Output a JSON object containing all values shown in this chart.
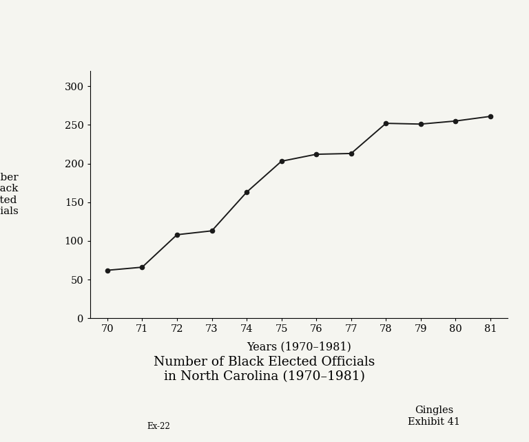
{
  "years": [
    "70",
    "71",
    "72",
    "73",
    "74",
    "75",
    "76",
    "77",
    "78",
    "79",
    "80",
    "81"
  ],
  "values": [
    62,
    66,
    108,
    113,
    163,
    203,
    212,
    213,
    252,
    251,
    255,
    261
  ],
  "xlabel": "Years (1970–1981)",
  "ylabel": "Number\nof Black\nElected\nOfficials",
  "title_line1": "Number of Black Elected Officials",
  "title_line2": "in North Carolina (1970–1981)",
  "annotation1": "Gingles\nExhibit 41",
  "annotation2": "Ex-22",
  "yticks": [
    0,
    50,
    100,
    150,
    200,
    250,
    300
  ],
  "ylim": [
    0,
    320
  ],
  "line_color": "#1a1a1a",
  "marker_color": "#1a1a1a",
  "bg_color": "#f5f5f0"
}
